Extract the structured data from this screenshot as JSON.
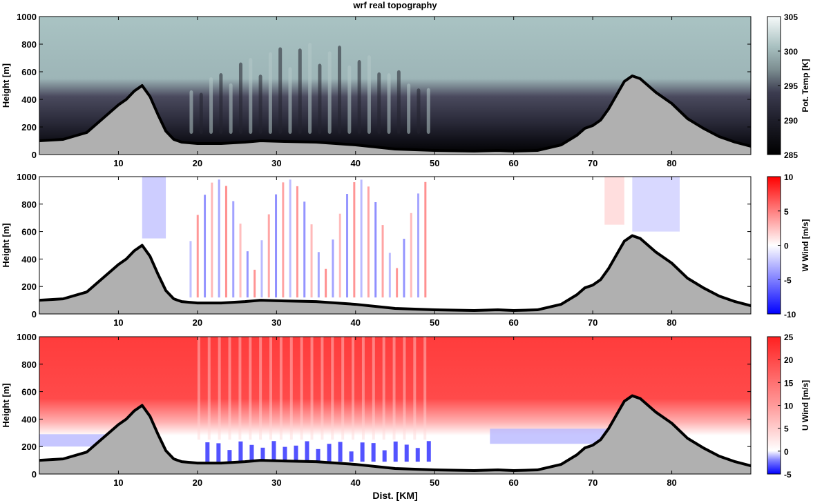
{
  "chart_data": [
    {
      "type": "heatmap",
      "title": "wrf real topography",
      "ylabel": "Height [m]",
      "xlabel": "",
      "xlim": [
        0,
        90
      ],
      "ylim": [
        0,
        1000
      ],
      "x_ticks": [
        10,
        20,
        30,
        40,
        50,
        60,
        70,
        80
      ],
      "y_ticks": [
        0,
        200,
        400,
        600,
        800,
        1000
      ],
      "colorbar": {
        "label": "Pot. Temp [K]",
        "range": [
          285,
          305
        ],
        "ticks": [
          285,
          290,
          295,
          300,
          305
        ]
      },
      "colors": {
        "low": "#000000",
        "mid": "#3a3a4e",
        "high": "#f4f8f8"
      }
    },
    {
      "type": "heatmap",
      "title": "",
      "ylabel": "Height [m]",
      "xlabel": "",
      "xlim": [
        0,
        90
      ],
      "ylim": [
        0,
        1000
      ],
      "x_ticks": [
        10,
        20,
        30,
        40,
        50,
        60,
        70,
        80
      ],
      "y_ticks": [
        0,
        200,
        400,
        600,
        800,
        1000
      ],
      "colorbar": {
        "label": "W Wind [m/s]",
        "range": [
          -10,
          10
        ],
        "ticks": [
          -10,
          -5,
          0,
          5,
          10
        ]
      },
      "colors": {
        "neg": "#0000ff",
        "zero": "#ffffff",
        "pos": "#ff0000"
      }
    },
    {
      "type": "heatmap",
      "title": "",
      "ylabel": "Height [m]",
      "xlabel": "Dist. [KM]",
      "xlim": [
        0,
        90
      ],
      "ylim": [
        0,
        1000
      ],
      "x_ticks": [
        10,
        20,
        30,
        40,
        50,
        60,
        70,
        80
      ],
      "y_ticks": [
        0,
        200,
        400,
        600,
        800,
        1000
      ],
      "colorbar": {
        "label": "U Wind [m/s]",
        "range": [
          -5,
          25
        ],
        "ticks": [
          -5,
          0,
          5,
          10,
          15,
          20,
          25
        ]
      },
      "colors": {
        "neg": "#0000ff",
        "zero": "#ffffff",
        "pos": "#ff2a2a"
      }
    }
  ],
  "terrain": {
    "x": [
      0,
      3,
      6,
      8,
      10,
      11,
      12,
      13,
      14,
      15,
      16,
      17,
      18,
      20,
      23,
      26,
      28,
      31,
      35,
      40,
      45,
      50,
      55,
      58,
      60,
      63,
      66,
      68,
      69,
      70,
      71,
      72,
      73,
      74,
      75,
      76,
      78,
      80,
      82,
      84,
      86,
      88,
      90
    ],
    "y": [
      100,
      110,
      160,
      260,
      360,
      400,
      460,
      500,
      420,
      290,
      170,
      110,
      90,
      80,
      80,
      90,
      100,
      95,
      90,
      70,
      40,
      30,
      25,
      30,
      25,
      30,
      70,
      140,
      190,
      210,
      250,
      330,
      430,
      530,
      570,
      550,
      450,
      370,
      260,
      190,
      130,
      90,
      60
    ]
  }
}
